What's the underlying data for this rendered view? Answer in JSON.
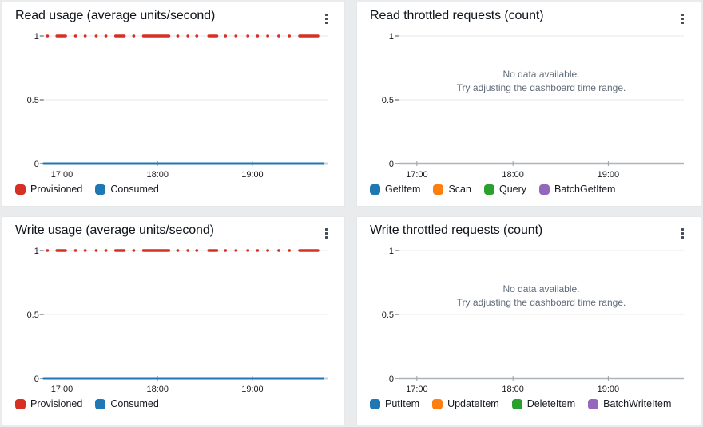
{
  "no_data_message": {
    "line1": "No data available.",
    "line2": "Try adjusting the dashboard time range."
  },
  "colors": {
    "provisioned_red": "#d63024",
    "series_blue": "#1f77b4",
    "series_orange": "#ff7f0e",
    "series_green": "#2ca02c",
    "series_purple": "#9467bd",
    "gridline": "#e9e9e9",
    "axis_baseline_usage": "#d0d4d4",
    "axis_baseline_nodata": "#aeb5ba",
    "tick_text": "#16191f",
    "no_data_text": "#5f6b7a",
    "panel_background": "#ffffff",
    "page_background": "#e9ebed"
  },
  "chart_data": [
    {
      "panel": "read-usage",
      "type": "line",
      "title": "Read usage (average units/second)",
      "xlabel": "",
      "ylabel": "",
      "ylim": [
        0,
        1
      ],
      "grid": true,
      "legend_position": "bottom",
      "no_data": false,
      "y_ticks": [
        {
          "label": "1",
          "value": 1
        },
        {
          "label": "0.5",
          "value": 0.5
        },
        {
          "label": "0",
          "value": 0
        }
      ],
      "x_ticks": [
        {
          "label": "17:00",
          "f": 0.064
        },
        {
          "label": "18:00",
          "f": 0.401
        },
        {
          "label": "19:00",
          "f": 0.735
        }
      ],
      "series": [
        {
          "name": "Provisioned",
          "color": "#d63024",
          "value": 1,
          "style": "dots-and-dashes",
          "segments": [
            [
              0.013,
              0.013
            ],
            [
              0.046,
              0.077
            ],
            [
              0.112,
              0.112
            ],
            [
              0.146,
              0.146
            ],
            [
              0.185,
              0.185
            ],
            [
              0.219,
              0.219
            ],
            [
              0.253,
              0.284
            ],
            [
              0.317,
              0.317
            ],
            [
              0.351,
              0.441
            ],
            [
              0.472,
              0.472
            ],
            [
              0.508,
              0.508
            ],
            [
              0.539,
              0.539
            ],
            [
              0.581,
              0.61
            ],
            [
              0.64,
              0.64
            ],
            [
              0.677,
              0.677
            ],
            [
              0.719,
              0.719
            ],
            [
              0.753,
              0.753
            ],
            [
              0.789,
              0.789
            ],
            [
              0.828,
              0.828
            ],
            [
              0.865,
              0.865
            ],
            [
              0.901,
              0.966
            ]
          ]
        },
        {
          "name": "Consumed",
          "color": "#1f77b4",
          "value": 0,
          "style": "solid",
          "segments": [
            [
              0.0,
              0.985
            ]
          ]
        }
      ]
    },
    {
      "panel": "read-throttled",
      "type": "line",
      "title": "Read throttled requests (count)",
      "xlabel": "",
      "ylabel": "",
      "ylim": [
        0,
        1
      ],
      "grid": true,
      "legend_position": "bottom",
      "no_data": true,
      "y_ticks": [
        {
          "label": "1",
          "value": 1
        },
        {
          "label": "0.5",
          "value": 0.5
        },
        {
          "label": "0",
          "value": 0
        }
      ],
      "x_ticks": [
        {
          "label": "17:00",
          "f": 0.064
        },
        {
          "label": "18:00",
          "f": 0.401
        },
        {
          "label": "19:00",
          "f": 0.735
        }
      ],
      "series": [
        {
          "name": "GetItem",
          "color": "#1f77b4",
          "style": "solid",
          "segments": []
        },
        {
          "name": "Scan",
          "color": "#ff7f0e",
          "style": "solid",
          "segments": []
        },
        {
          "name": "Query",
          "color": "#2ca02c",
          "style": "solid",
          "segments": []
        },
        {
          "name": "BatchGetItem",
          "color": "#9467bd",
          "style": "solid",
          "segments": []
        }
      ]
    },
    {
      "panel": "write-usage",
      "type": "line",
      "title": "Write usage (average units/second)",
      "xlabel": "",
      "ylabel": "",
      "ylim": [
        0,
        1
      ],
      "grid": true,
      "legend_position": "bottom",
      "no_data": false,
      "y_ticks": [
        {
          "label": "1",
          "value": 1
        },
        {
          "label": "0.5",
          "value": 0.5
        },
        {
          "label": "0",
          "value": 0
        }
      ],
      "x_ticks": [
        {
          "label": "17:00",
          "f": 0.064
        },
        {
          "label": "18:00",
          "f": 0.401
        },
        {
          "label": "19:00",
          "f": 0.735
        }
      ],
      "series": [
        {
          "name": "Provisioned",
          "color": "#d63024",
          "value": 1,
          "style": "dots-and-dashes",
          "segments": [
            [
              0.013,
              0.013
            ],
            [
              0.046,
              0.077
            ],
            [
              0.112,
              0.112
            ],
            [
              0.146,
              0.146
            ],
            [
              0.185,
              0.185
            ],
            [
              0.219,
              0.219
            ],
            [
              0.253,
              0.284
            ],
            [
              0.317,
              0.317
            ],
            [
              0.351,
              0.441
            ],
            [
              0.472,
              0.472
            ],
            [
              0.508,
              0.508
            ],
            [
              0.539,
              0.539
            ],
            [
              0.581,
              0.61
            ],
            [
              0.64,
              0.64
            ],
            [
              0.677,
              0.677
            ],
            [
              0.719,
              0.719
            ],
            [
              0.753,
              0.753
            ],
            [
              0.789,
              0.789
            ],
            [
              0.828,
              0.828
            ],
            [
              0.865,
              0.865
            ],
            [
              0.901,
              0.966
            ]
          ]
        },
        {
          "name": "Consumed",
          "color": "#1f77b4",
          "value": 0,
          "style": "solid",
          "segments": [
            [
              0.0,
              0.985
            ]
          ]
        }
      ]
    },
    {
      "panel": "write-throttled",
      "type": "line",
      "title": "Write throttled requests (count)",
      "xlabel": "",
      "ylabel": "",
      "ylim": [
        0,
        1
      ],
      "grid": true,
      "legend_position": "bottom",
      "no_data": true,
      "y_ticks": [
        {
          "label": "1",
          "value": 1
        },
        {
          "label": "0.5",
          "value": 0.5
        },
        {
          "label": "0",
          "value": 0
        }
      ],
      "x_ticks": [
        {
          "label": "17:00",
          "f": 0.064
        },
        {
          "label": "18:00",
          "f": 0.401
        },
        {
          "label": "19:00",
          "f": 0.735
        }
      ],
      "series": [
        {
          "name": "PutItem",
          "color": "#1f77b4",
          "style": "solid",
          "segments": []
        },
        {
          "name": "UpdateItem",
          "color": "#ff7f0e",
          "style": "solid",
          "segments": []
        },
        {
          "name": "DeleteItem",
          "color": "#2ca02c",
          "style": "solid",
          "segments": []
        },
        {
          "name": "BatchWriteItem",
          "color": "#9467bd",
          "style": "solid",
          "segments": []
        }
      ]
    }
  ]
}
